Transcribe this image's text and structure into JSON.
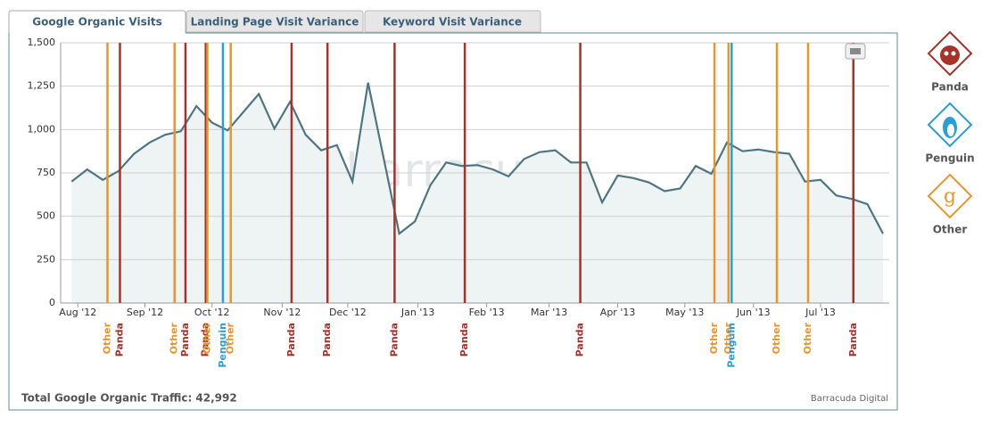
{
  "tabs": [
    "Google Organic Visits",
    "Landing Page Visit Variance",
    "Keyword Visit Variance"
  ],
  "chart_data": {
    "type": "area-line",
    "watermark": "barracuda",
    "x": [
      0,
      1,
      2,
      3,
      4,
      5,
      6,
      7,
      8,
      9,
      10,
      11,
      12,
      13,
      14,
      15,
      16,
      17,
      18,
      19,
      21,
      22,
      23,
      24,
      25,
      26,
      27,
      28,
      29,
      30,
      31,
      32,
      33,
      34,
      35,
      36,
      37,
      38,
      39,
      40,
      41,
      42,
      43,
      44,
      45,
      46,
      47,
      48,
      49,
      50,
      51,
      52
    ],
    "values": [
      700,
      770,
      710,
      760,
      860,
      925,
      970,
      990,
      1135,
      1040,
      995,
      1100,
      1205,
      1005,
      1160,
      970,
      880,
      910,
      700,
      1270,
      400,
      470,
      680,
      810,
      790,
      795,
      770,
      730,
      830,
      870,
      880,
      810,
      810,
      580,
      735,
      720,
      695,
      645,
      660,
      790,
      745,
      925,
      875,
      885,
      870,
      860,
      700,
      710,
      620,
      600,
      570,
      400
    ],
    "color": "#4e7682",
    "fill": "#eef3f3",
    "xlim": [
      -0.7,
      52.4
    ],
    "xticks": [
      {
        "value": 0.4,
        "label": "Aug '12"
      },
      {
        "value": 4.7,
        "label": "Sep '12"
      },
      {
        "value": 9.0,
        "label": "Oct '12"
      },
      {
        "value": 13.5,
        "label": "Nov '12"
      },
      {
        "value": 17.7,
        "label": "Dec '12"
      },
      {
        "value": 22.2,
        "label": "Jan '13"
      },
      {
        "value": 26.6,
        "label": "Feb '13"
      },
      {
        "value": 30.6,
        "label": "Mar '13"
      },
      {
        "value": 35.0,
        "label": "Apr '13"
      },
      {
        "value": 39.3,
        "label": "May '13"
      },
      {
        "value": 43.7,
        "label": "Jun '13"
      },
      {
        "value": 48.0,
        "label": "Jul '13"
      }
    ],
    "ylim": [
      0,
      1500
    ],
    "yticks": [
      0,
      250,
      500,
      750,
      {
        "value": 1000,
        "label": "1,000"
      },
      {
        "value": 1250,
        "label": "1,250"
      },
      {
        "value": 1500,
        "label": "1,500"
      }
    ],
    "grid": true,
    "events": [
      {
        "x": 2.3,
        "label": "Other",
        "color": "#e8962b"
      },
      {
        "x": 3.1,
        "label": "Panda",
        "color": "#a8322a"
      },
      {
        "x": 6.6,
        "label": "Other",
        "color": "#e8962b"
      },
      {
        "x": 7.3,
        "label": "Panda",
        "color": "#a8322a"
      },
      {
        "x": 8.6,
        "label": "Panda",
        "color": "#a8322a"
      },
      {
        "x": 8.7,
        "label": "Other",
        "color": "#e8962b"
      },
      {
        "x": 9.7,
        "label": "Penguin",
        "color": "#2a9fd6"
      },
      {
        "x": 10.2,
        "label": "Other",
        "color": "#e8962b"
      },
      {
        "x": 14.1,
        "label": "Panda",
        "color": "#a8322a"
      },
      {
        "x": 16.4,
        "label": "Panda",
        "color": "#a8322a"
      },
      {
        "x": 20.7,
        "label": "Panda",
        "color": "#a8322a"
      },
      {
        "x": 25.2,
        "label": "Panda",
        "color": "#a8322a"
      },
      {
        "x": 32.6,
        "label": "Panda",
        "color": "#a8322a"
      },
      {
        "x": 41.2,
        "label": "Other",
        "color": "#e8962b"
      },
      {
        "x": 42.1,
        "label": "Other",
        "color": "#e8962b"
      },
      {
        "x": 42.3,
        "label": "Penguin",
        "color": "#2a9fd6"
      },
      {
        "x": 45.2,
        "label": "Other",
        "color": "#e8962b"
      },
      {
        "x": 47.2,
        "label": "Other",
        "color": "#e8962b"
      },
      {
        "x": 50.1,
        "label": "Panda",
        "color": "#a8322a"
      }
    ]
  },
  "footer": {
    "total": "Total Google Organic Traffic: 42,992",
    "credit": "Barracuda Digital"
  },
  "legend": [
    "Panda",
    "Penguin",
    "Other"
  ]
}
